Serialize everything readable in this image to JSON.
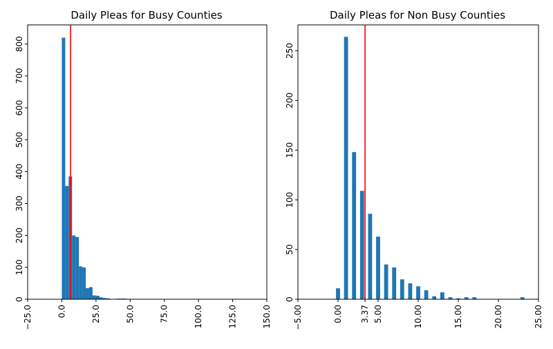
{
  "colors": {
    "bar": "#1f77b4",
    "mean_line": "#ff0000",
    "axes": "#000000"
  },
  "chart_data": [
    {
      "type": "bar",
      "title": "Daily Pleas for Busy Counties",
      "xlabel": "",
      "ylabel": "",
      "xlim": [
        -25,
        150
      ],
      "ylim": [
        0,
        860
      ],
      "x_ticks": [
        -25,
        0,
        25,
        50,
        75,
        100,
        125,
        150
      ],
      "x_tick_labels": [
        "−25.0",
        "0.0",
        "25.0",
        "50.0",
        "75.0",
        "100.0",
        "125.0",
        "150.0"
      ],
      "y_ticks": [
        0,
        100,
        200,
        300,
        400,
        500,
        600,
        700,
        800
      ],
      "y_tick_labels": [
        "0",
        "100",
        "200",
        "300",
        "400",
        "500",
        "600",
        "700",
        "800"
      ],
      "mean_value": 6.4,
      "mean_label": "6.4",
      "bin_width": 2.5,
      "bins": [
        {
          "x": 0.0,
          "value": 820
        },
        {
          "x": 2.5,
          "value": 355
        },
        {
          "x": 5.0,
          "value": 385
        },
        {
          "x": 7.5,
          "value": 200
        },
        {
          "x": 10.0,
          "value": 195
        },
        {
          "x": 12.5,
          "value": 103
        },
        {
          "x": 15.0,
          "value": 100
        },
        {
          "x": 17.5,
          "value": 35
        },
        {
          "x": 20.0,
          "value": 38
        },
        {
          "x": 22.5,
          "value": 12
        },
        {
          "x": 25.0,
          "value": 11
        },
        {
          "x": 27.5,
          "value": 6
        },
        {
          "x": 30.0,
          "value": 4
        },
        {
          "x": 32.5,
          "value": 3
        },
        {
          "x": 35.0,
          "value": 1
        },
        {
          "x": 37.5,
          "value": 1
        },
        {
          "x": 40.0,
          "value": 2
        },
        {
          "x": 42.5,
          "value": 2
        },
        {
          "x": 45.0,
          "value": 2
        },
        {
          "x": 47.5,
          "value": 1
        },
        {
          "x": 55.0,
          "value": 1
        },
        {
          "x": 72.5,
          "value": 1
        },
        {
          "x": 75.0,
          "value": 1
        },
        {
          "x": 85.0,
          "value": 1
        },
        {
          "x": 120.0,
          "value": 1
        }
      ]
    },
    {
      "type": "bar",
      "title": "Daily Pleas for Non Busy Counties",
      "xlabel": "",
      "ylabel": "",
      "xlim": [
        -5,
        25
      ],
      "ylim": [
        0,
        276
      ],
      "x_ticks": [
        -5,
        0,
        3.37,
        5,
        10,
        15,
        20,
        25
      ],
      "x_tick_labels": [
        "−5.00",
        "0.00",
        "3.37",
        "5.00",
        "10.00",
        "15.00",
        "20.00",
        "25.00"
      ],
      "y_ticks": [
        0,
        50,
        100,
        150,
        200,
        250
      ],
      "y_tick_labels": [
        "0",
        "50",
        "100",
        "150",
        "200",
        "250"
      ],
      "mean_value": 3.37,
      "mean_label": "3.37",
      "bar_width": 0.5,
      "bins": [
        {
          "x": 0,
          "value": 11
        },
        {
          "x": 1,
          "value": 264
        },
        {
          "x": 2,
          "value": 148
        },
        {
          "x": 3,
          "value": 109
        },
        {
          "x": 4,
          "value": 86
        },
        {
          "x": 5,
          "value": 63
        },
        {
          "x": 6,
          "value": 35
        },
        {
          "x": 7,
          "value": 32
        },
        {
          "x": 8,
          "value": 20
        },
        {
          "x": 9,
          "value": 16
        },
        {
          "x": 10,
          "value": 13
        },
        {
          "x": 11,
          "value": 9
        },
        {
          "x": 12,
          "value": 3
        },
        {
          "x": 13,
          "value": 7
        },
        {
          "x": 14,
          "value": 2
        },
        {
          "x": 15,
          "value": 1
        },
        {
          "x": 16,
          "value": 2
        },
        {
          "x": 17,
          "value": 2
        },
        {
          "x": 23,
          "value": 2
        }
      ]
    }
  ]
}
